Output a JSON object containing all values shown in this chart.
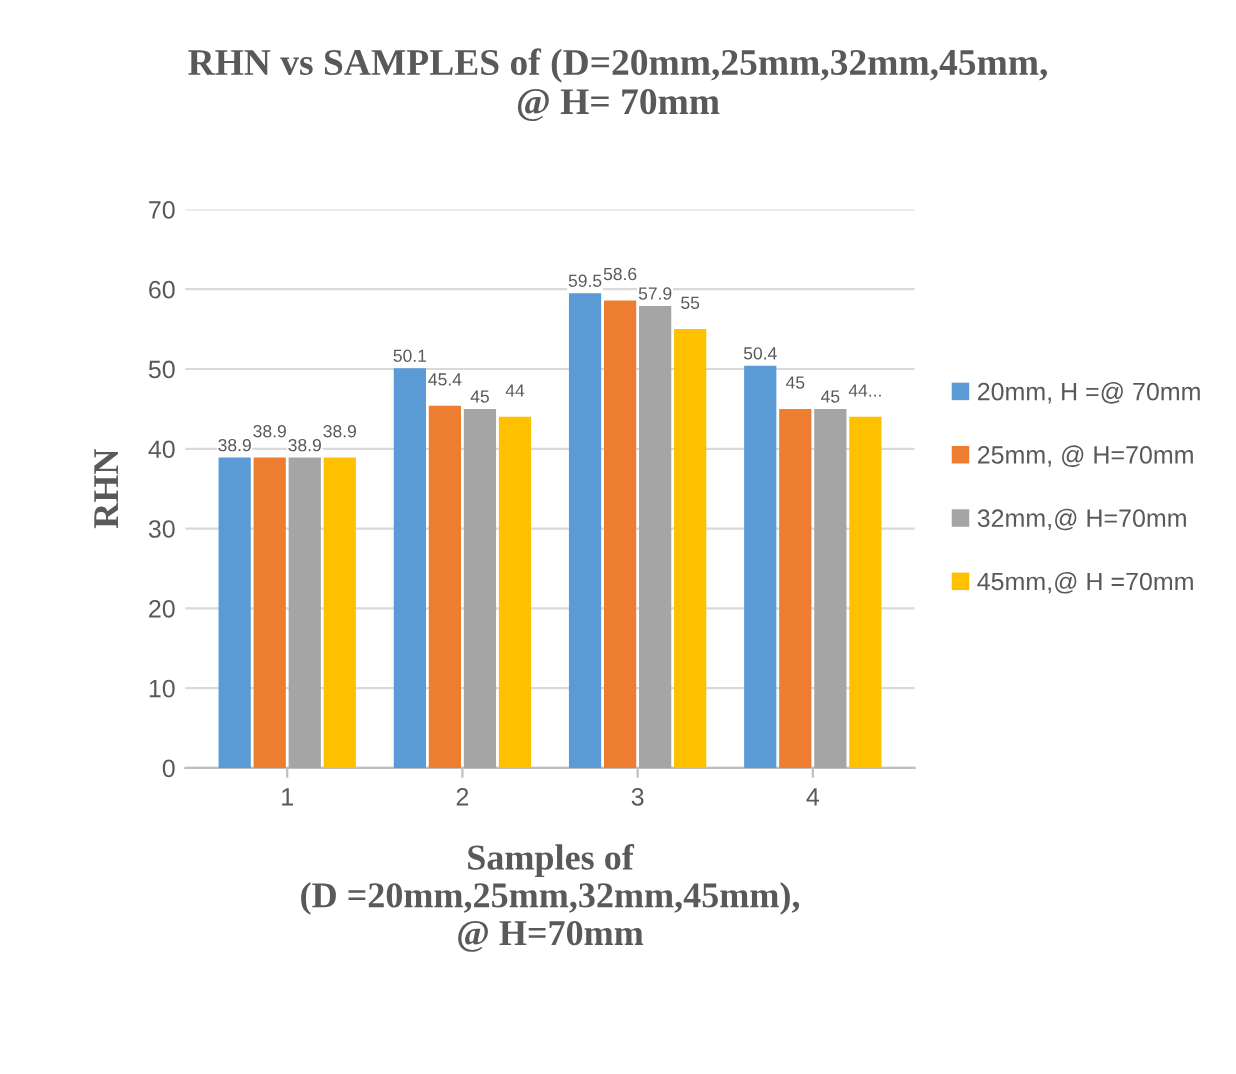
{
  "chart_data": {
    "type": "bar",
    "title": "RHN vs SAMPLES of (D=20mm,25mm,32mm,45mm,\n@ H= 70mm",
    "xlabel": "Samples of\n(D =20mm,25mm,32mm,45mm),\n@ H=70mm",
    "ylabel": "RHN",
    "categories": [
      "1",
      "2",
      "3",
      "4"
    ],
    "series": [
      {
        "name": "20mm, H =@ 70mm",
        "color": "#5b9bd5",
        "values": [
          38.9,
          50.1,
          59.5,
          50.4
        ],
        "value_labels": [
          "38.9",
          "50.1",
          "59.5",
          "50.4"
        ]
      },
      {
        "name": "25mm, @ H=70mm",
        "color": "#ed7d31",
        "values": [
          38.9,
          45.4,
          58.6,
          45
        ],
        "value_labels": [
          "38.9",
          "45.4",
          "58.6",
          "45"
        ]
      },
      {
        "name": "32mm,@ H=70mm",
        "color": "#a5a5a5",
        "values": [
          38.9,
          45,
          57.9,
          45
        ],
        "value_labels": [
          "38.9",
          "45",
          "57.9",
          "45"
        ]
      },
      {
        "name": "45mm,@ H =70mm",
        "color": "#ffc000",
        "values": [
          38.9,
          44,
          55,
          44
        ],
        "value_labels": [
          "38.9",
          "44",
          "55",
          "44..."
        ]
      }
    ],
    "ylim": [
      0,
      70
    ],
    "yticks": [
      0,
      10,
      20,
      30,
      40,
      50,
      60,
      70
    ],
    "grid": "y",
    "legend": "right"
  }
}
